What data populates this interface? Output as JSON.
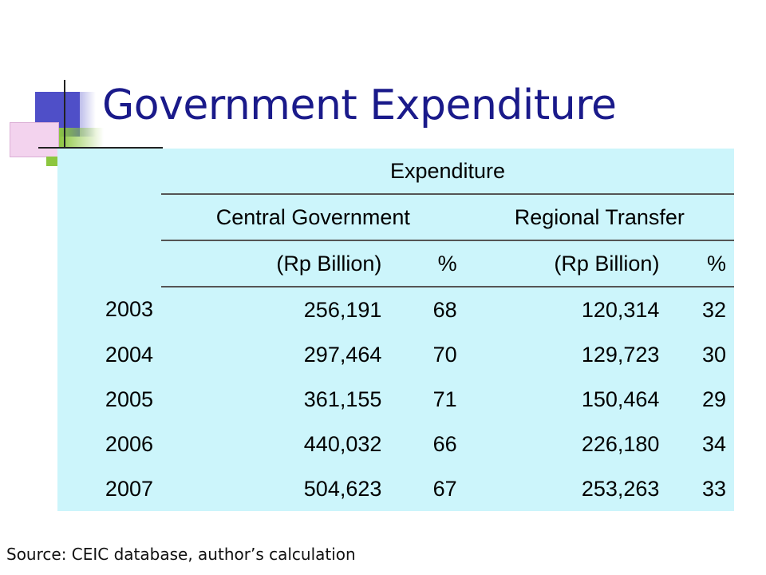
{
  "slide": {
    "title": "Government Expenditure",
    "source": "Source: CEIC database, author’s calculation"
  },
  "table": {
    "header_group": "Expenditure",
    "subgroups": [
      "Central Government",
      "Regional Transfer"
    ],
    "units": [
      "(Rp Billion)",
      "%",
      "(Rp Billion)",
      "%"
    ],
    "rows": [
      {
        "year": "2003",
        "central_rp": "256,191",
        "central_pct": "68",
        "regional_rp": "120,314",
        "regional_pct": "32"
      },
      {
        "year": "2004",
        "central_rp": "297,464",
        "central_pct": "70",
        "regional_rp": "129,723",
        "regional_pct": "30"
      },
      {
        "year": "2005",
        "central_rp": "361,155",
        "central_pct": "71",
        "regional_rp": "150,464",
        "regional_pct": "29"
      },
      {
        "year": "2006",
        "central_rp": "440,032",
        "central_pct": "66",
        "regional_rp": "226,180",
        "regional_pct": "34"
      },
      {
        "year": "2007",
        "central_rp": "504,623",
        "central_pct": "67",
        "regional_rp": "253,263",
        "regional_pct": "33"
      }
    ]
  },
  "colors": {
    "title": "#1a1a8a",
    "table_background": "#ccf5fb",
    "ornament_blue": "#4f4fc8",
    "ornament_pink": "#f3d3ee",
    "ornament_green": "#8cc63f"
  }
}
